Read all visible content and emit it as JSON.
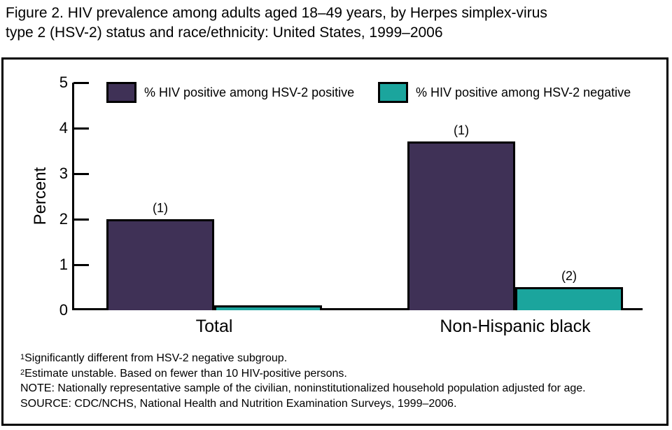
{
  "figure": {
    "title_line1": "Figure 2. HIV prevalence among adults aged 18–49 years, by Herpes simplex-virus",
    "title_line2": "type 2 (HSV-2) status and race/ethnicity: United States, 1999–2006"
  },
  "chart_data": {
    "type": "bar",
    "title": "",
    "xlabel": "",
    "ylabel": "Percent",
    "ylim": [
      0,
      5
    ],
    "yticks": [
      0,
      1,
      2,
      3,
      4,
      5
    ],
    "grid": false,
    "legend_position": "top",
    "categories": [
      "Total",
      "Non-Hispanic black"
    ],
    "series": [
      {
        "name": "% HIV positive among HSV-2 positive",
        "color": "#3f3156",
        "values": [
          2.0,
          3.7
        ],
        "annotations": [
          "(1)",
          "(1)"
        ]
      },
      {
        "name": "% HIV positive among HSV-2 negative",
        "color": "#1ba59d",
        "values": [
          0.1,
          0.5
        ],
        "annotations": [
          "",
          "(2)"
        ]
      }
    ]
  },
  "footnotes": [
    {
      "sup": "1",
      "text": "Significantly different from HSV-2 negative subgroup."
    },
    {
      "sup": "2",
      "text": "Estimate unstable. Based on fewer than 10 HIV-positive persons."
    },
    {
      "sup": "",
      "text": "NOTE: Nationally representative sample of the civilian, noninstitutionalized household population adjusted for age."
    },
    {
      "sup": "",
      "text": "SOURCE: CDC/NCHS, National Health and Nutrition Examination Surveys, 1999–2006."
    }
  ]
}
